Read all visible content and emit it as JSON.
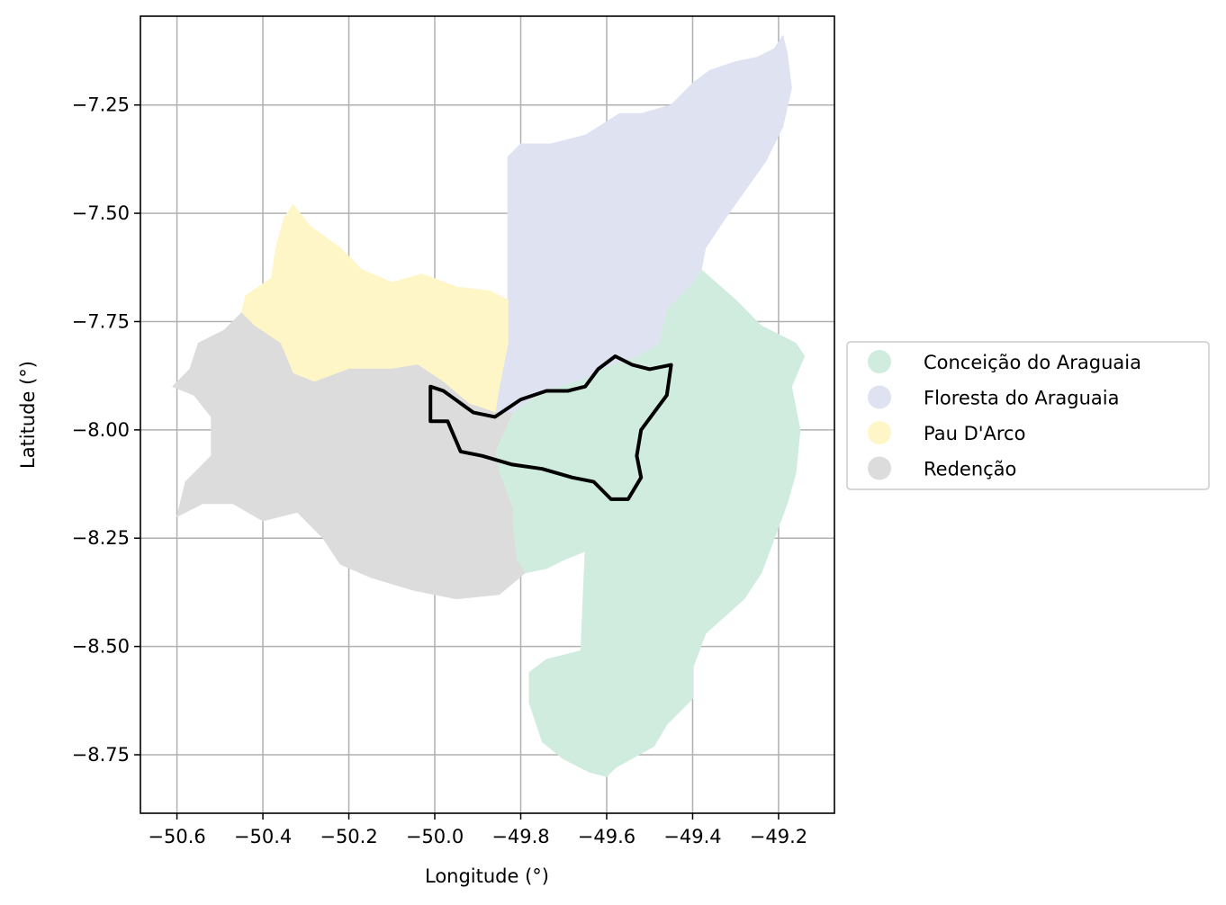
{
  "chart_data": {
    "type": "map",
    "xlabel": "Longitude (°)",
    "ylabel": "Latitude (°)",
    "xlim": [
      -50.685,
      -49.07
    ],
    "ylim": [
      -8.885,
      -7.045
    ],
    "xticks": [
      -50.6,
      -50.4,
      -50.2,
      -50.0,
      -49.8,
      -49.6,
      -49.4,
      -49.2
    ],
    "xtick_labels": [
      "−50.6",
      "−50.4",
      "−50.2",
      "−50.0",
      "−49.8",
      "−49.6",
      "−49.4",
      "−49.2"
    ],
    "yticks": [
      -7.25,
      -7.5,
      -7.75,
      -8.0,
      -8.25,
      -8.5,
      -8.75
    ],
    "ytick_labels": [
      "−7.25",
      "−7.50",
      "−7.75",
      "−8.00",
      "−8.25",
      "−8.50",
      "−8.75"
    ],
    "grid": true,
    "legend_position": "center-right",
    "regions": [
      {
        "name": "Conceição do Araguaia",
        "color": "#d0ecdf",
        "outline": [
          [
            -49.38,
            -7.63
          ],
          [
            -49.3,
            -7.7
          ],
          [
            -49.24,
            -7.76
          ],
          [
            -49.16,
            -7.8
          ],
          [
            -49.14,
            -7.83
          ],
          [
            -49.17,
            -7.9
          ],
          [
            -49.15,
            -8.0
          ],
          [
            -49.16,
            -8.1
          ],
          [
            -49.18,
            -8.17
          ],
          [
            -49.21,
            -8.25
          ],
          [
            -49.24,
            -8.33
          ],
          [
            -49.28,
            -8.39
          ],
          [
            -49.37,
            -8.47
          ],
          [
            -49.4,
            -8.55
          ],
          [
            -49.4,
            -8.62
          ],
          [
            -49.46,
            -8.68
          ],
          [
            -49.49,
            -8.73
          ],
          [
            -49.58,
            -8.78
          ],
          [
            -49.6,
            -8.8
          ],
          [
            -49.64,
            -8.79
          ],
          [
            -49.7,
            -8.76
          ],
          [
            -49.75,
            -8.72
          ],
          [
            -49.78,
            -8.63
          ],
          [
            -49.78,
            -8.56
          ],
          [
            -49.74,
            -8.53
          ],
          [
            -49.66,
            -8.51
          ],
          [
            -49.65,
            -8.28
          ],
          [
            -49.7,
            -8.3
          ],
          [
            -49.74,
            -8.32
          ],
          [
            -49.79,
            -8.33
          ],
          [
            -49.81,
            -8.3
          ],
          [
            -49.82,
            -8.22
          ],
          [
            -49.82,
            -8.18
          ],
          [
            -49.85,
            -8.1
          ],
          [
            -49.86,
            -8.05
          ],
          [
            -49.82,
            -7.96
          ],
          [
            -49.75,
            -7.91
          ],
          [
            -49.65,
            -7.88
          ],
          [
            -49.59,
            -7.85
          ],
          [
            -49.53,
            -7.83
          ],
          [
            -49.48,
            -7.8
          ],
          [
            -49.46,
            -7.72
          ],
          [
            -49.4,
            -7.66
          ]
        ]
      },
      {
        "name": "Floresta do Araguaia",
        "color": "#dfe3f1",
        "outline": [
          [
            -49.83,
            -7.37
          ],
          [
            -49.8,
            -7.34
          ],
          [
            -49.73,
            -7.34
          ],
          [
            -49.65,
            -7.32
          ],
          [
            -49.57,
            -7.27
          ],
          [
            -49.52,
            -7.27
          ],
          [
            -49.45,
            -7.25
          ],
          [
            -49.4,
            -7.2
          ],
          [
            -49.36,
            -7.17
          ],
          [
            -49.3,
            -7.15
          ],
          [
            -49.25,
            -7.14
          ],
          [
            -49.21,
            -7.12
          ],
          [
            -49.19,
            -7.09
          ],
          [
            -49.18,
            -7.13
          ],
          [
            -49.17,
            -7.21
          ],
          [
            -49.19,
            -7.3
          ],
          [
            -49.23,
            -7.38
          ],
          [
            -49.28,
            -7.45
          ],
          [
            -49.33,
            -7.52
          ],
          [
            -49.37,
            -7.58
          ],
          [
            -49.38,
            -7.63
          ],
          [
            -49.4,
            -7.66
          ],
          [
            -49.46,
            -7.72
          ],
          [
            -49.48,
            -7.8
          ],
          [
            -49.53,
            -7.83
          ],
          [
            -49.59,
            -7.85
          ],
          [
            -49.65,
            -7.88
          ],
          [
            -49.75,
            -7.91
          ],
          [
            -49.82,
            -7.96
          ],
          [
            -49.86,
            -7.96
          ],
          [
            -49.85,
            -7.9
          ],
          [
            -49.83,
            -7.8
          ],
          [
            -49.83,
            -7.7
          ]
        ]
      },
      {
        "name": "Pau D'Arco",
        "color": "#fff6c7",
        "outline": [
          [
            -50.44,
            -7.69
          ],
          [
            -50.38,
            -7.65
          ],
          [
            -50.37,
            -7.58
          ],
          [
            -50.35,
            -7.51
          ],
          [
            -50.33,
            -7.48
          ],
          [
            -50.29,
            -7.53
          ],
          [
            -50.22,
            -7.58
          ],
          [
            -50.17,
            -7.63
          ],
          [
            -50.1,
            -7.66
          ],
          [
            -50.03,
            -7.64
          ],
          [
            -49.95,
            -7.67
          ],
          [
            -49.87,
            -7.68
          ],
          [
            -49.83,
            -7.7
          ],
          [
            -49.83,
            -7.8
          ],
          [
            -49.85,
            -7.9
          ],
          [
            -49.86,
            -7.96
          ],
          [
            -49.92,
            -7.94
          ],
          [
            -49.98,
            -7.89
          ],
          [
            -50.04,
            -7.85
          ],
          [
            -50.1,
            -7.86
          ],
          [
            -50.2,
            -7.86
          ],
          [
            -50.28,
            -7.89
          ],
          [
            -50.33,
            -7.87
          ],
          [
            -50.36,
            -7.8
          ],
          [
            -50.42,
            -7.76
          ],
          [
            -50.45,
            -7.73
          ]
        ]
      },
      {
        "name": "Redenção",
        "color": "#dcdcdc",
        "outline": [
          [
            -50.61,
            -7.9
          ],
          [
            -50.57,
            -7.86
          ],
          [
            -50.55,
            -7.8
          ],
          [
            -50.49,
            -7.77
          ],
          [
            -50.45,
            -7.73
          ],
          [
            -50.42,
            -7.76
          ],
          [
            -50.36,
            -7.8
          ],
          [
            -50.33,
            -7.87
          ],
          [
            -50.28,
            -7.89
          ],
          [
            -50.2,
            -7.86
          ],
          [
            -50.1,
            -7.86
          ],
          [
            -50.04,
            -7.85
          ],
          [
            -49.98,
            -7.89
          ],
          [
            -49.92,
            -7.94
          ],
          [
            -49.86,
            -7.96
          ],
          [
            -49.82,
            -7.96
          ],
          [
            -49.86,
            -8.05
          ],
          [
            -49.85,
            -8.1
          ],
          [
            -49.82,
            -8.18
          ],
          [
            -49.82,
            -8.22
          ],
          [
            -49.81,
            -8.3
          ],
          [
            -49.79,
            -8.33
          ],
          [
            -49.85,
            -8.38
          ],
          [
            -49.95,
            -8.39
          ],
          [
            -50.05,
            -8.37
          ],
          [
            -50.15,
            -8.34
          ],
          [
            -50.22,
            -8.31
          ],
          [
            -50.26,
            -8.25
          ],
          [
            -50.32,
            -8.19
          ],
          [
            -50.4,
            -8.21
          ],
          [
            -50.47,
            -8.17
          ],
          [
            -50.54,
            -8.17
          ],
          [
            -50.6,
            -8.2
          ],
          [
            -50.58,
            -8.12
          ],
          [
            -50.52,
            -8.06
          ],
          [
            -50.52,
            -7.97
          ],
          [
            -50.56,
            -7.92
          ]
        ]
      }
    ],
    "highlight_outline": [
      [
        -50.01,
        -7.9
      ],
      [
        -49.98,
        -7.91
      ],
      [
        -49.91,
        -7.96
      ],
      [
        -49.86,
        -7.97
      ],
      [
        -49.8,
        -7.93
      ],
      [
        -49.74,
        -7.91
      ],
      [
        -49.69,
        -7.91
      ],
      [
        -49.65,
        -7.9
      ],
      [
        -49.62,
        -7.86
      ],
      [
        -49.58,
        -7.83
      ],
      [
        -49.54,
        -7.85
      ],
      [
        -49.5,
        -7.86
      ],
      [
        -49.45,
        -7.85
      ],
      [
        -49.46,
        -7.92
      ],
      [
        -49.49,
        -7.96
      ],
      [
        -49.52,
        -8.0
      ],
      [
        -49.53,
        -8.06
      ],
      [
        -49.52,
        -8.11
      ],
      [
        -49.55,
        -8.16
      ],
      [
        -49.59,
        -8.16
      ],
      [
        -49.63,
        -8.12
      ],
      [
        -49.68,
        -8.11
      ],
      [
        -49.75,
        -8.09
      ],
      [
        -49.82,
        -8.08
      ],
      [
        -49.89,
        -8.06
      ],
      [
        -49.94,
        -8.05
      ],
      [
        -49.97,
        -7.98
      ],
      [
        -50.01,
        -7.98
      ]
    ]
  },
  "legend": {
    "items": [
      {
        "label": "Conceição do Araguaia",
        "color": "#d0ecdf"
      },
      {
        "label": "Floresta do Araguaia",
        "color": "#dfe3f1"
      },
      {
        "label": "Pau D'Arco",
        "color": "#fff6c7"
      },
      {
        "label": "Redenção",
        "color": "#dcdcdc"
      }
    ]
  }
}
